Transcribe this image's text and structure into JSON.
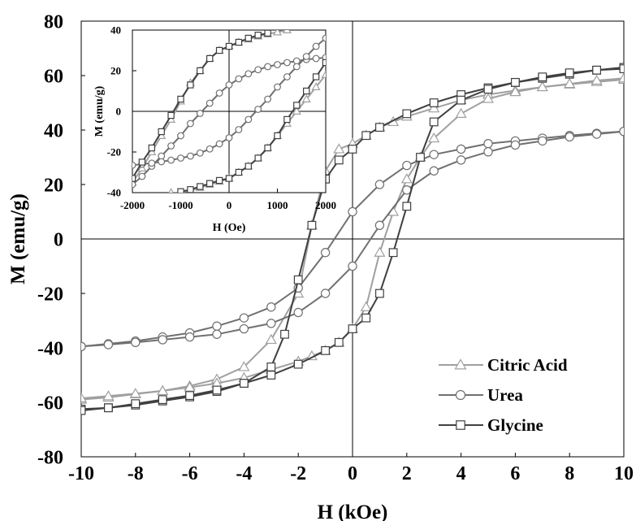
{
  "chart_data": [
    {
      "type": "line",
      "title": "",
      "xlabel": "H (kOe)",
      "ylabel": "M (emu/g)",
      "xlim": [
        -10,
        10
      ],
      "ylim": [
        -80,
        80
      ],
      "xticks": [
        "-10",
        "-8",
        "-6",
        "-4",
        "-2",
        "0",
        "2",
        "4",
        "6",
        "8",
        "10"
      ],
      "yticks": [
        "-80",
        "-60",
        "-40",
        "-20",
        "0",
        "20",
        "40",
        "60",
        "80"
      ],
      "grid": false,
      "legend_position": "bottom-right",
      "series": [
        {
          "name": "Citric Acid",
          "marker": "triangle",
          "color": "#a0a0a0",
          "upper": [
            [
              -10,
              -59
            ],
            [
              -9,
              -58.2
            ],
            [
              -8,
              -57
            ],
            [
              -7,
              -55.8
            ],
            [
              -6,
              -54
            ],
            [
              -5,
              -51.5
            ],
            [
              -4,
              -47
            ],
            [
              -3,
              -37
            ],
            [
              -2,
              -20
            ],
            [
              -1.5,
              5
            ],
            [
              -1,
              25
            ],
            [
              -0.5,
              33
            ],
            [
              0,
              35
            ],
            [
              0.5,
              38
            ],
            [
              1,
              41
            ],
            [
              1.5,
              43
            ],
            [
              2,
              45
            ],
            [
              3,
              48
            ],
            [
              4,
              51
            ],
            [
              5,
              53
            ],
            [
              6,
              54.5
            ],
            [
              7,
              55.8
            ],
            [
              8,
              56.8
            ],
            [
              9,
              57.7
            ],
            [
              10,
              58.5
            ]
          ],
          "lower": [
            [
              -10,
              -58.5
            ],
            [
              -9,
              -57.7
            ],
            [
              -8,
              -56.8
            ],
            [
              -7,
              -55.8
            ],
            [
              -6,
              -54.5
            ],
            [
              -5,
              -53
            ],
            [
              -4,
              -51
            ],
            [
              -3,
              -48
            ],
            [
              -2,
              -45
            ],
            [
              -1.5,
              -43
            ],
            [
              -1,
              -41
            ],
            [
              -0.5,
              -38
            ],
            [
              0,
              -33
            ],
            [
              0.5,
              -25
            ],
            [
              1,
              -5
            ],
            [
              1.5,
              10
            ],
            [
              2,
              22
            ],
            [
              2.5,
              30
            ],
            [
              3,
              37
            ],
            [
              4,
              46
            ],
            [
              5,
              51.5
            ],
            [
              6,
              54
            ],
            [
              7,
              55.8
            ],
            [
              8,
              57
            ],
            [
              9,
              58.2
            ],
            [
              10,
              59
            ]
          ]
        },
        {
          "name": "Urea",
          "marker": "circle",
          "color": "#707070",
          "upper": [
            [
              -10,
              -39.5
            ],
            [
              -9,
              -38.5
            ],
            [
              -8,
              -37.5
            ],
            [
              -7,
              -36
            ],
            [
              -6,
              -34.5
            ],
            [
              -5,
              -32
            ],
            [
              -4,
              -29
            ],
            [
              -3,
              -25
            ],
            [
              -2,
              -18
            ],
            [
              -1,
              -5
            ],
            [
              0,
              10
            ],
            [
              1,
              20
            ],
            [
              2,
              27
            ],
            [
              3,
              31
            ],
            [
              4,
              33
            ],
            [
              5,
              35
            ],
            [
              6,
              36
            ],
            [
              7,
              37
            ],
            [
              8,
              38
            ],
            [
              9,
              38.8
            ],
            [
              10,
              39.5
            ]
          ],
          "lower": [
            [
              -10,
              -39.5
            ],
            [
              -9,
              -38.8
            ],
            [
              -8,
              -38
            ],
            [
              -7,
              -37
            ],
            [
              -6,
              -36
            ],
            [
              -5,
              -35
            ],
            [
              -4,
              -33
            ],
            [
              -3,
              -31
            ],
            [
              -2,
              -27
            ],
            [
              -1,
              -20
            ],
            [
              0,
              -10
            ],
            [
              1,
              5
            ],
            [
              2,
              18
            ],
            [
              3,
              25
            ],
            [
              4,
              29
            ],
            [
              5,
              32
            ],
            [
              6,
              34.5
            ],
            [
              7,
              36
            ],
            [
              8,
              37.5
            ],
            [
              9,
              38.5
            ],
            [
              10,
              39.5
            ]
          ]
        },
        {
          "name": "Glycine",
          "marker": "square",
          "color": "#404040",
          "upper": [
            [
              -10,
              -62.5
            ],
            [
              -9,
              -62
            ],
            [
              -8,
              -61
            ],
            [
              -7,
              -59.5
            ],
            [
              -6,
              -58
            ],
            [
              -5,
              -56
            ],
            [
              -4,
              -53
            ],
            [
              -3,
              -47
            ],
            [
              -2.5,
              -35
            ],
            [
              -2,
              -15
            ],
            [
              -1.5,
              5
            ],
            [
              -1,
              22
            ],
            [
              -0.5,
              29
            ],
            [
              0,
              33
            ],
            [
              0.5,
              38
            ],
            [
              1,
              41
            ],
            [
              2,
              46
            ],
            [
              3,
              50
            ],
            [
              4,
              53
            ],
            [
              5,
              55.5
            ],
            [
              6,
              57.5
            ],
            [
              7,
              59
            ],
            [
              8,
              60.5
            ],
            [
              9,
              62
            ],
            [
              10,
              63
            ]
          ],
          "lower": [
            [
              -10,
              -63
            ],
            [
              -9,
              -62
            ],
            [
              -8,
              -60.5
            ],
            [
              -7,
              -59
            ],
            [
              -6,
              -57.5
            ],
            [
              -5,
              -55.5
            ],
            [
              -4,
              -53
            ],
            [
              -3,
              -50
            ],
            [
              -2,
              -46
            ],
            [
              -1,
              -41
            ],
            [
              -0.5,
              -38
            ],
            [
              0,
              -33
            ],
            [
              0.5,
              -29
            ],
            [
              1,
              -20
            ],
            [
              1.5,
              -5
            ],
            [
              2,
              12
            ],
            [
              2.5,
              30
            ],
            [
              3,
              43
            ],
            [
              4,
              51
            ],
            [
              5,
              55
            ],
            [
              6,
              57.5
            ],
            [
              7,
              59.5
            ],
            [
              8,
              61
            ],
            [
              9,
              62
            ],
            [
              10,
              62.5
            ]
          ]
        }
      ]
    },
    {
      "type": "line",
      "title": "",
      "xlabel": "H (Oe)",
      "ylabel": "M (emu/g)",
      "xlim": [
        -2000,
        2000
      ],
      "ylim": [
        -40,
        40
      ],
      "xticks": [
        "-2000",
        "-1000",
        "0",
        "1000",
        "2000"
      ],
      "yticks": [
        "-40",
        "-20",
        "0",
        "20",
        "40"
      ],
      "grid": false,
      "series": [
        {
          "name": "Citric Acid",
          "marker": "triangle",
          "color": "#a0a0a0",
          "upper": [
            [
              -2000,
              -35
            ],
            [
              -1800,
              -28
            ],
            [
              -1600,
              -20
            ],
            [
              -1400,
              -12
            ],
            [
              -1200,
              -4
            ],
            [
              -1000,
              5
            ],
            [
              -800,
              14
            ],
            [
              -600,
              20
            ],
            [
              -400,
              26
            ],
            [
              -200,
              30
            ],
            [
              0,
              32
            ],
            [
              200,
              34
            ],
            [
              400,
              35.5
            ],
            [
              600,
              37
            ],
            [
              800,
              38
            ],
            [
              1000,
              39
            ],
            [
              1200,
              40
            ]
          ],
          "lower": [
            [
              -1200,
              -40
            ],
            [
              -1000,
              -40
            ],
            [
              -800,
              -39
            ],
            [
              -600,
              -37.5
            ],
            [
              -400,
              -36
            ],
            [
              -200,
              -34.5
            ],
            [
              0,
              -33
            ],
            [
              200,
              -30
            ],
            [
              400,
              -27
            ],
            [
              600,
              -23
            ],
            [
              800,
              -18
            ],
            [
              1000,
              -12
            ],
            [
              1200,
              -6
            ],
            [
              1400,
              0
            ],
            [
              1600,
              6
            ],
            [
              1800,
              12
            ],
            [
              2000,
              18
            ]
          ]
        },
        {
          "name": "Urea",
          "marker": "circle",
          "color": "#707070",
          "upper": [
            [
              -2000,
              -36
            ],
            [
              -1800,
              -32
            ],
            [
              -1600,
              -27
            ],
            [
              -1400,
              -22
            ],
            [
              -1200,
              -17
            ],
            [
              -1000,
              -12
            ],
            [
              -800,
              -6
            ],
            [
              -600,
              -1
            ],
            [
              -400,
              4
            ],
            [
              -200,
              9
            ],
            [
              0,
              13
            ],
            [
              200,
              16
            ],
            [
              400,
              18.5
            ],
            [
              600,
              20.5
            ],
            [
              800,
              22
            ],
            [
              1000,
              23
            ],
            [
              1200,
              24
            ],
            [
              1400,
              24.8
            ],
            [
              1600,
              25.5
            ],
            [
              1800,
              26
            ],
            [
              2000,
              26.5
            ]
          ],
          "lower": [
            [
              -2000,
              -26.5
            ],
            [
              -1800,
              -26
            ],
            [
              -1600,
              -25.5
            ],
            [
              -1400,
              -24.8
            ],
            [
              -1200,
              -24
            ],
            [
              -1000,
              -23
            ],
            [
              -800,
              -22
            ],
            [
              -600,
              -20.5
            ],
            [
              -400,
              -18.5
            ],
            [
              -200,
              -16
            ],
            [
              0,
              -13
            ],
            [
              200,
              -9
            ],
            [
              400,
              -4
            ],
            [
              600,
              1
            ],
            [
              800,
              6
            ],
            [
              1000,
              12
            ],
            [
              1200,
              17
            ],
            [
              1400,
              22
            ],
            [
              1600,
              27
            ],
            [
              1800,
              32
            ],
            [
              2000,
              36
            ]
          ]
        },
        {
          "name": "Glycine",
          "marker": "square",
          "color": "#404040",
          "upper": [
            [
              -2000,
              -33
            ],
            [
              -1800,
              -25
            ],
            [
              -1600,
              -18
            ],
            [
              -1400,
              -10
            ],
            [
              -1200,
              -2
            ],
            [
              -1000,
              6
            ],
            [
              -800,
              13
            ],
            [
              -600,
              20
            ],
            [
              -400,
              26
            ],
            [
              -200,
              30
            ],
            [
              0,
              32
            ],
            [
              200,
              34
            ],
            [
              400,
              36
            ],
            [
              600,
              37.5
            ],
            [
              800,
              38.5
            ]
          ],
          "lower": [
            [
              -1000,
              -39.5
            ],
            [
              -800,
              -38.5
            ],
            [
              -600,
              -37
            ],
            [
              -400,
              -35.5
            ],
            [
              -200,
              -34
            ],
            [
              0,
              -33
            ],
            [
              200,
              -30
            ],
            [
              400,
              -27
            ],
            [
              600,
              -23
            ],
            [
              800,
              -18
            ],
            [
              1000,
              -12
            ],
            [
              1200,
              -4
            ],
            [
              1400,
              3
            ],
            [
              1600,
              10
            ],
            [
              1800,
              17
            ],
            [
              2000,
              24
            ]
          ]
        }
      ]
    }
  ]
}
